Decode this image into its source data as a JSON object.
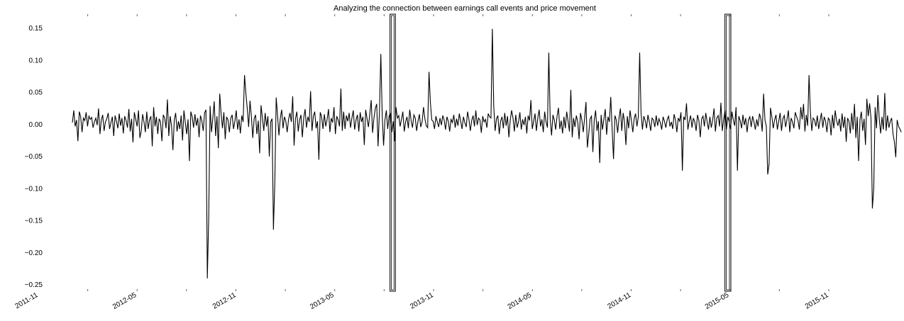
{
  "chart_data": {
    "type": "line",
    "title": "Analyzing the connection between earnings call events and price movement",
    "xlabel": "",
    "ylabel": "",
    "x_range": [
      "2011-11-01",
      "2016-03-20"
    ],
    "ylim": [
      -0.255,
      0.17
    ],
    "grid": false,
    "y_ticks": [
      0.15,
      0.1,
      0.05,
      0.0,
      -0.05,
      -0.1,
      -0.15,
      -0.2,
      -0.25
    ],
    "y_tick_labels": [
      "0.15",
      "0.10",
      "0.05",
      "0.00",
      "−0.05",
      "−0.10",
      "−0.15",
      "−0.20",
      "−0.25"
    ],
    "x_ticks": [
      {
        "date": "2011-11-01",
        "label": "2011-11"
      },
      {
        "date": "2012-05-01",
        "label": "2012-05"
      },
      {
        "date": "2012-11-01",
        "label": "2012-11"
      },
      {
        "date": "2013-05-01",
        "label": "2013-05"
      },
      {
        "date": "2013-11-01",
        "label": "2013-11"
      },
      {
        "date": "2014-05-01",
        "label": "2014-05"
      },
      {
        "date": "2014-11-01",
        "label": "2014-11"
      },
      {
        "date": "2015-05-01",
        "label": "2015-05"
      },
      {
        "date": "2015-11-01",
        "label": "2015-11"
      }
    ],
    "series": [
      {
        "color": "#000000",
        "date_start": "2012-01-03",
        "date_end": "2016-03-14",
        "values": [
          0.002,
          0.021,
          -0.004,
          0.006,
          -0.027,
          0.019,
          0.011,
          -0.013,
          0.009,
          0.005,
          0.018,
          -0.004,
          0.012,
          0.007,
          0.01,
          -0.006,
          0.003,
          0.009,
          -0.002,
          0.024,
          -0.016,
          0.006,
          0.014,
          -0.011,
          0.003,
          0.008,
          0.017,
          -0.008,
          0.002,
          0.011,
          -0.019,
          0.013,
          0.004,
          -0.007,
          0.016,
          -0.003,
          0.009,
          -0.015,
          0.012,
          0.005,
          -0.006,
          0.023,
          -0.012,
          0.008,
          -0.029,
          0.018,
          0.007,
          -0.004,
          0.021,
          -0.022,
          -0.011,
          0.015,
          0.003,
          -0.013,
          0.019,
          -0.008,
          0.006,
          0.012,
          -0.035,
          0.026,
          -0.004,
          0.011,
          -0.016,
          0.008,
          0.003,
          -0.027,
          0.014,
          0.009,
          -0.007,
          0.038,
          -0.019,
          0.012,
          -0.003,
          -0.041,
          0.006,
          0.017,
          -0.012,
          0.004,
          -0.008,
          0.013,
          -0.026,
          0.021,
          0.002,
          -0.016,
          0.007,
          -0.058,
          0.019,
          0.011,
          -0.006,
          0.015,
          -0.003,
          0.009,
          -0.021,
          0.013,
          0.005,
          -0.011,
          0.017,
          0.022,
          -0.241,
          -0.145,
          0.028,
          -0.013,
          0.009,
          0.035,
          -0.019,
          0.012,
          -0.038,
          0.047,
          0.016,
          -0.007,
          0.018,
          -0.024,
          0.011,
          0.006,
          -0.013,
          0.009,
          0.014,
          -0.008,
          0.004,
          0.021,
          -0.009,
          0.007,
          -0.015,
          0.013,
          0.003,
          0.076,
          0.047,
          0.024,
          -0.005,
          0.036,
          0.011,
          -0.022,
          0.008,
          0.014,
          -0.016,
          0.005,
          -0.046,
          0.029,
          0.009,
          -0.011,
          0.017,
          -0.004,
          0.012,
          -0.051,
          0.003,
          0.008,
          -0.165,
          -0.092,
          0.041,
          0.013,
          -0.018,
          0.009,
          0.022,
          -0.007,
          0.011,
          0.004,
          -0.013,
          0.007,
          0.017,
          0.003,
          0.043,
          -0.034,
          0.008,
          0.019,
          -0.012,
          0.006,
          0.014,
          -0.021,
          0.009,
          0.023,
          -0.006,
          0.011,
          0.003,
          0.051,
          -0.011,
          0.012,
          0.019,
          -0.007,
          0.004,
          -0.056,
          0.018,
          0.011,
          -0.008,
          0.015,
          -0.004,
          0.007,
          0.023,
          -0.013,
          0.009,
          0.002,
          0.026,
          -0.016,
          0.012,
          0.006,
          -0.004,
          0.055,
          -0.011,
          0.019,
          -0.008,
          0.013,
          0.004,
          0.017,
          -0.006,
          0.009,
          0.021,
          -0.009,
          0.006,
          0.014,
          -0.012,
          0.018,
          0.003,
          0.011,
          -0.033,
          0.022,
          0.008,
          -0.005,
          0.016,
          0.037,
          -0.014,
          0.009,
          0.024,
          0.031,
          -0.035,
          0.019,
          0.109,
          0.014,
          -0.034,
          0.006,
          0.021,
          -0.008,
          0.012,
          0.017,
          -0.013,
          0.004,
          -0.027,
          0.026,
          0.009,
          0.013,
          -0.004,
          0.007,
          0.019,
          -0.012,
          0.003,
          0.011,
          -0.007,
          0.022,
          0.005,
          -0.006,
          0.014,
          0.009,
          -0.011,
          0.004,
          0.015,
          -0.005,
          0.003,
          0.026,
          0.008,
          -0.003,
          -0.006,
          0.081,
          0.033,
          0.006,
          0.004,
          -0.008,
          0.012,
          0.003,
          -0.005,
          0.009,
          -0.002,
          0.013,
          0.006,
          -0.009,
          0.011,
          0.004,
          -0.012,
          0.007,
          0.002,
          0.014,
          -0.006,
          0.008,
          -0.003,
          0.016,
          0.004,
          -0.008,
          0.011,
          0.002,
          -0.005,
          0.019,
          0.007,
          -0.011,
          0.005,
          0.013,
          -0.004,
          0.021,
          -0.002,
          0.009,
          0.006,
          -0.014,
          0.012,
          0.003,
          0.007,
          -0.006,
          0.016,
          0.011,
          0.009,
          0.148,
          0.028,
          -0.011,
          0.008,
          0.013,
          -0.016,
          0.004,
          0.011,
          -0.007,
          0.017,
          -0.003,
          0.012,
          -0.021,
          0.006,
          0.021,
          0.009,
          -0.012,
          0.014,
          -0.006,
          0.003,
          0.018,
          -0.009,
          0.007,
          -0.002,
          0.011,
          -0.015,
          0.013,
          0.005,
          0.037,
          -0.008,
          0.004,
          0.016,
          -0.011,
          0.009,
          0.022,
          -0.004,
          0.007,
          -0.013,
          0.019,
          0.003,
          -0.006,
          0.111,
          0.008,
          -0.018,
          0.014,
          0.006,
          -0.009,
          0.012,
          0.025,
          -0.008,
          0.005,
          -0.015,
          0.011,
          -0.007,
          0.019,
          0.004,
          -0.012,
          0.053,
          -0.021,
          0.009,
          -0.005,
          0.013,
          0.003,
          -0.024,
          0.017,
          0.006,
          -0.013,
          0.009,
          0.034,
          -0.037,
          -0.016,
          0.008,
          0.012,
          -0.044,
          0.006,
          0.021,
          -0.011,
          0.004,
          -0.061,
          0.014,
          -0.009,
          0.007,
          0.023,
          -0.017,
          0.011,
          0.003,
          0.042,
          -0.008,
          -0.055,
          0.013,
          0.006,
          -0.014,
          0.009,
          0.024,
          -0.011,
          0.017,
          0.003,
          -0.033,
          0.012,
          -0.007,
          0.021,
          0.005,
          -0.013,
          0.008,
          0.016,
          -0.004,
          0.011,
          0.111,
          0.017,
          -0.009,
          0.012,
          0.005,
          -0.007,
          0.014,
          0.003,
          -0.011,
          0.009,
          0.006,
          -0.005,
          0.013,
          -0.003,
          0.008,
          0.002,
          -0.009,
          0.011,
          0.004,
          -0.006,
          0.007,
          0.012,
          -0.004,
          0.003,
          -0.008,
          0.015,
          0.006,
          -0.013,
          0.009,
          0.004,
          0.018,
          -0.073,
          0.011,
          0.006,
          0.032,
          -0.009,
          0.004,
          0.013,
          -0.006,
          0.009,
          0.003,
          -0.011,
          0.014,
          0.005,
          -0.021,
          0.008,
          0.012,
          -0.004,
          0.017,
          0.003,
          -0.009,
          0.011,
          -0.006,
          0.006,
          0.024,
          -0.012,
          0.009,
          0.013,
          -0.004,
          0.033,
          -0.011,
          0.007,
          0.021,
          -0.009,
          0.011,
          0.004,
          -0.008,
          0.019,
          0.006,
          -0.003,
          0.026,
          -0.073,
          0.012,
          0.005,
          -0.007,
          0.014,
          -0.002,
          0.009,
          -0.013,
          0.006,
          0.011,
          -0.005,
          0.012,
          0.003,
          -0.009,
          0.007,
          -0.004,
          0.016,
          0.008,
          -0.012,
          0.047,
          0.006,
          -0.004,
          -0.079,
          -0.062,
          0.025,
          0.011,
          -0.007,
          0.006,
          0.014,
          -0.009,
          0.004,
          0.017,
          -0.011,
          0.008,
          0.013,
          -0.005,
          0.007,
          0.021,
          -0.013,
          0.009,
          0.003,
          -0.007,
          0.018,
          0.011,
          0.005,
          -0.009,
          0.026,
          0.007,
          0.031,
          -0.012,
          0.014,
          -0.003,
          0.076,
          0.018,
          -0.011,
          0.009,
          0.006,
          -0.004,
          0.013,
          -0.008,
          0.005,
          0.017,
          -0.006,
          0.011,
          0.004,
          -0.013,
          0.009,
          0.006,
          -0.018,
          0.014,
          -0.007,
          0.021,
          0.005,
          -0.003,
          0.008,
          -0.012,
          0.016,
          -0.006,
          0.011,
          -0.028,
          0.009,
          0.004,
          -0.015,
          0.017,
          -0.009,
          0.031,
          -0.022,
          0.011,
          -0.058,
          0.006,
          0.019,
          -0.011,
          0.008,
          -0.033,
          0.039,
          0.012,
          0.032,
          0.009,
          -0.132,
          -0.101,
          0.026,
          -0.007,
          0.045,
          0.008,
          -0.015,
          0.011,
          -0.009,
          0.048,
          -0.011,
          0.013,
          -0.006,
          0.004,
          0.009,
          -0.016,
          -0.028,
          -0.052,
          0.006,
          -0.004,
          -0.008,
          -0.013
        ]
      }
    ],
    "highlight_boxes": [
      {
        "start": "2013-08-12",
        "end": "2013-08-22"
      },
      {
        "start": "2015-04-23",
        "end": "2015-05-04"
      }
    ]
  }
}
